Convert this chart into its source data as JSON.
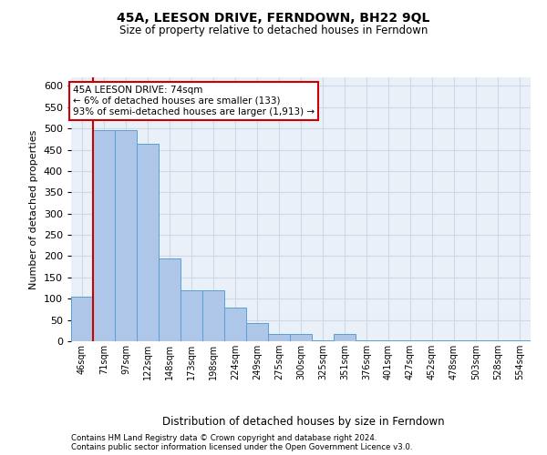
{
  "title_line1": "45A, LEESON DRIVE, FERNDOWN, BH22 9QL",
  "title_line2": "Size of property relative to detached houses in Ferndown",
  "xlabel": "Distribution of detached houses by size in Ferndown",
  "ylabel": "Number of detached properties",
  "footer_line1": "Contains HM Land Registry data © Crown copyright and database right 2024.",
  "footer_line2": "Contains public sector information licensed under the Open Government Licence v3.0.",
  "categories": [
    "46sqm",
    "71sqm",
    "97sqm",
    "122sqm",
    "148sqm",
    "173sqm",
    "198sqm",
    "224sqm",
    "249sqm",
    "275sqm",
    "300sqm",
    "325sqm",
    "351sqm",
    "376sqm",
    "401sqm",
    "427sqm",
    "452sqm",
    "478sqm",
    "503sqm",
    "528sqm",
    "554sqm"
  ],
  "values": [
    105,
    497,
    497,
    465,
    195,
    120,
    120,
    80,
    43,
    18,
    18,
    3,
    18,
    3,
    3,
    3,
    3,
    3,
    3,
    3,
    3
  ],
  "bar_color": "#aec6e8",
  "bar_edge_color": "#5a9fd4",
  "grid_color": "#d0d8e8",
  "background_color": "#eaf0f8",
  "annotation_box_color": "#ffffff",
  "annotation_border_color": "#cc0000",
  "annotation_text_line1": "45A LEESON DRIVE: 74sqm",
  "annotation_text_line2": "← 6% of detached houses are smaller (133)",
  "annotation_text_line3": "93% of semi-detached houses are larger (1,913) →",
  "marker_line_color": "#cc0000",
  "ylim": [
    0,
    620
  ],
  "yticks": [
    0,
    50,
    100,
    150,
    200,
    250,
    300,
    350,
    400,
    450,
    500,
    550,
    600
  ]
}
